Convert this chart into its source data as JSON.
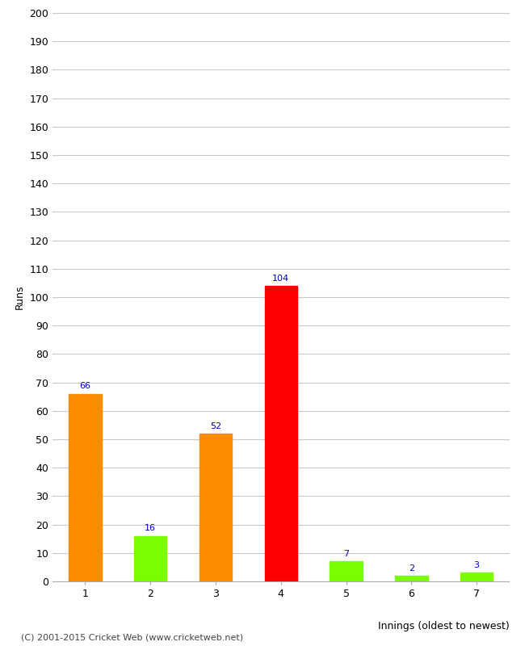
{
  "categories": [
    "1",
    "2",
    "3",
    "4",
    "5",
    "6",
    "7"
  ],
  "values": [
    66,
    16,
    52,
    104,
    7,
    2,
    3
  ],
  "bar_colors": [
    "#ff8c00",
    "#7cfc00",
    "#ff8c00",
    "#ff0000",
    "#7cfc00",
    "#7cfc00",
    "#7cfc00"
  ],
  "ylabel": "Runs",
  "xlabel": "Innings (oldest to newest)",
  "ylim": [
    0,
    200
  ],
  "yticks": [
    0,
    10,
    20,
    30,
    40,
    50,
    60,
    70,
    80,
    90,
    100,
    110,
    120,
    130,
    140,
    150,
    160,
    170,
    180,
    190,
    200
  ],
  "footer": "(C) 2001-2015 Cricket Web (www.cricketweb.net)",
  "label_color": "#0000cc",
  "background_color": "#ffffff",
  "grid_color": "#c8c8c8"
}
